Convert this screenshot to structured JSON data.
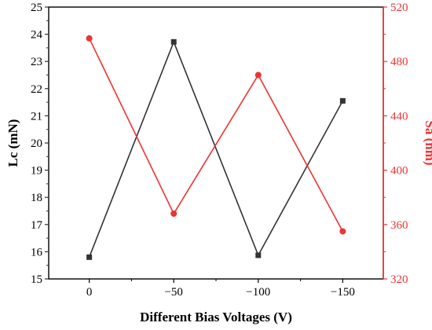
{
  "colors": {
    "left_series": "#333333",
    "right_series": "#ee3333",
    "frame": "#000000"
  },
  "chart_data": {
    "type": "line",
    "categories": [
      "0",
      "−50",
      "−100",
      "−150"
    ],
    "xlabel": "Different Bias Voltages (V)",
    "y_left": {
      "label": "Lc (mN)",
      "ylim": [
        15,
        25
      ],
      "ticks": [
        "15",
        "16",
        "17",
        "18",
        "19",
        "20",
        "21",
        "22",
        "23",
        "24",
        "25"
      ]
    },
    "y_right": {
      "label": "Sa (nm)",
      "ylim": [
        320,
        520
      ],
      "ticks": [
        "320",
        "360",
        "400",
        "440",
        "480",
        "520"
      ]
    },
    "series": [
      {
        "axis": "left",
        "marker": "square",
        "color": "#333333",
        "values": [
          15.8,
          23.72,
          15.87,
          21.55
        ]
      },
      {
        "axis": "right",
        "marker": "circle",
        "color": "#ee3333",
        "values": [
          497,
          368,
          470,
          355
        ]
      }
    ]
  }
}
